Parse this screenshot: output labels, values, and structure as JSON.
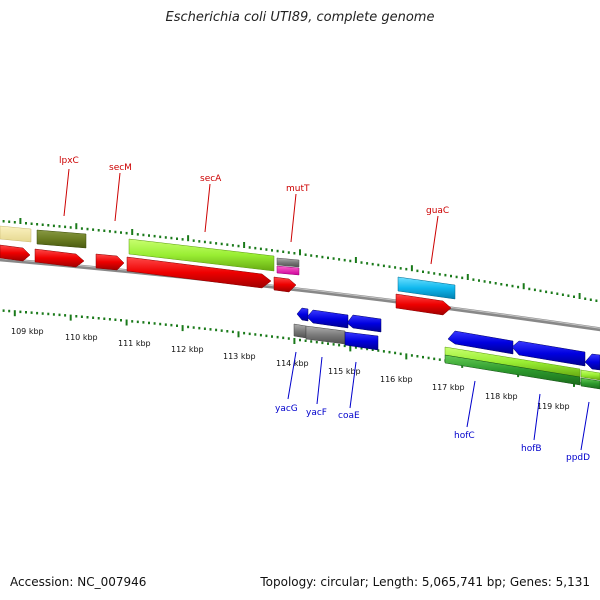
{
  "title": "Escherichia coli UTI89, complete genome",
  "footer": {
    "accession": "Accession: NC_007946",
    "summary": "Topology: circular; Length: 5,065,741 bp; Genes: 5,131"
  },
  "colors": {
    "forward_label": "#cc0000",
    "reverse_label": "#0000cc",
    "backbone": "#8a8a8a",
    "tick": "#1a7a1a"
  },
  "kbp_labels": [
    "109 kbp",
    "110 kbp",
    "111 kbp",
    "112 kbp",
    "113 kbp",
    "114 kbp",
    "115 kbp",
    "116 kbp",
    "117 kbp",
    "118 kbp",
    "119 kbp"
  ],
  "forward_genes": [
    "lpxC",
    "secM",
    "secA",
    "mutT",
    "guaC"
  ],
  "reverse_genes": [
    "yacG",
    "yacF",
    "coaE",
    "hofC",
    "hofB",
    "ppdD"
  ]
}
